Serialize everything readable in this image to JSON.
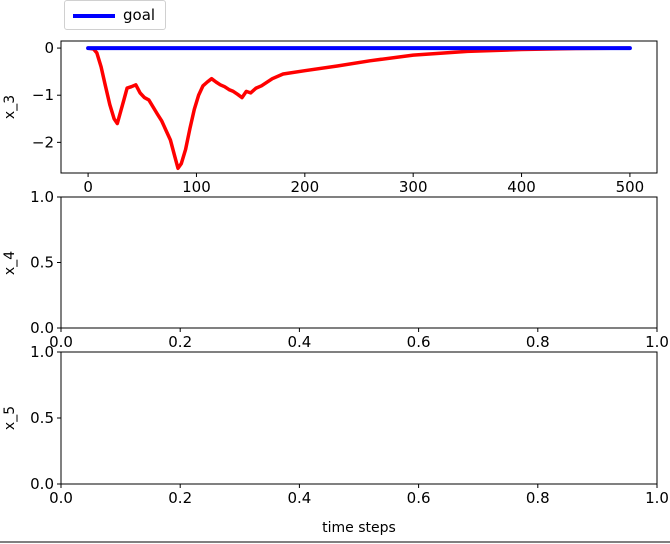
{
  "legend": {
    "label": "goal"
  },
  "colors": {
    "goal": "#0000ff",
    "x_3": "#ff0000"
  },
  "chart_data": [
    {
      "type": "line",
      "ylabel": "x_3",
      "xlim": [
        -25,
        525
      ],
      "ylim": [
        -2.65,
        0.15
      ],
      "xticks": [
        0,
        100,
        200,
        300,
        400,
        500
      ],
      "yticks": [
        0,
        -1,
        -2
      ],
      "series": [
        {
          "name": "goal",
          "x": [
            0,
            500
          ],
          "y": [
            0,
            0
          ]
        },
        {
          "x": [
            0,
            5,
            8,
            12,
            16,
            20,
            24,
            27,
            30,
            33,
            36,
            40,
            44,
            48,
            52,
            56,
            60,
            64,
            68,
            72,
            76,
            80,
            83,
            86,
            90,
            94,
            98,
            102,
            106,
            110,
            114,
            118,
            122,
            126,
            130,
            134,
            138,
            142,
            146,
            150,
            155,
            160,
            170,
            180,
            200,
            230,
            260,
            300,
            350,
            400,
            450,
            500
          ],
          "y": [
            0,
            -0.02,
            -0.1,
            -0.4,
            -0.8,
            -1.2,
            -1.5,
            -1.6,
            -1.35,
            -1.1,
            -0.85,
            -0.82,
            -0.78,
            -0.95,
            -1.05,
            -1.1,
            -1.25,
            -1.4,
            -1.55,
            -1.75,
            -1.95,
            -2.3,
            -2.55,
            -2.45,
            -2.15,
            -1.7,
            -1.3,
            -1.0,
            -0.8,
            -0.72,
            -0.65,
            -0.72,
            -0.78,
            -0.82,
            -0.88,
            -0.92,
            -0.98,
            -1.05,
            -0.92,
            -0.95,
            -0.85,
            -0.8,
            -0.65,
            -0.55,
            -0.48,
            -0.38,
            -0.27,
            -0.15,
            -0.07,
            -0.03,
            -0.01,
            0
          ]
        }
      ]
    },
    {
      "type": "line",
      "ylabel": "x_4",
      "xlim": [
        0,
        1
      ],
      "ylim": [
        0,
        1
      ],
      "xticks": [
        "0.0",
        "0.2",
        "0.4",
        "0.6",
        "0.8",
        "1.0"
      ],
      "yticks": [
        "0.0",
        "0.5",
        "1.0"
      ],
      "series": []
    },
    {
      "type": "line",
      "ylabel": "x_5",
      "xlabel": "time steps",
      "xlim": [
        0,
        1
      ],
      "ylim": [
        0,
        1
      ],
      "xticks": [
        "0.0",
        "0.2",
        "0.4",
        "0.6",
        "0.8",
        "1.0"
      ],
      "yticks": [
        "0.0",
        "0.5",
        "1.0"
      ],
      "series": []
    }
  ]
}
